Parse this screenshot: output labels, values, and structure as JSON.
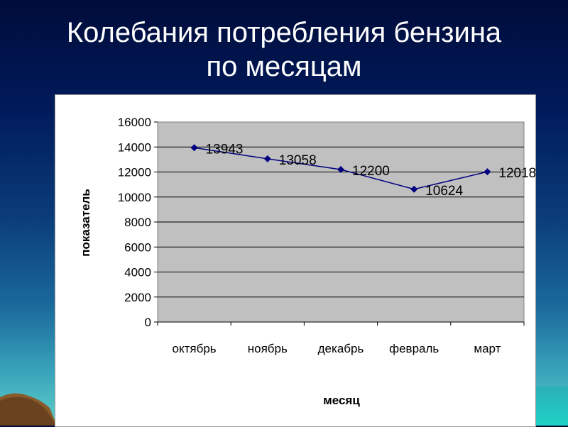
{
  "slide": {
    "title_line1": "Колебания потребления бензина",
    "title_line2": "по месяцам"
  },
  "chart_data": {
    "type": "line",
    "categories": [
      "октябрь",
      "ноябрь",
      "декабрь",
      "февраль",
      "март"
    ],
    "series": [
      {
        "values": [
          13943,
          13058,
          12200,
          10624,
          12018
        ]
      }
    ],
    "data_labels": [
      "13943",
      "13058",
      "12200",
      "10624",
      "12018"
    ],
    "xlabel": "месяц",
    "ylabel": "показатель",
    "ylim": [
      0,
      16000
    ],
    "yticks": [
      0,
      2000,
      4000,
      6000,
      8000,
      10000,
      12000,
      14000,
      16000
    ],
    "grid": true,
    "legend": "none",
    "colors": {
      "line": "#000080",
      "plot_area": "#c0c0c0",
      "gridline": "#000000"
    }
  }
}
